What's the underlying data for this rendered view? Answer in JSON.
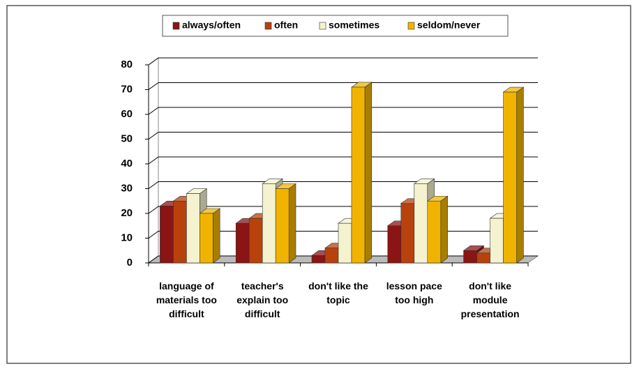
{
  "chart_data": {
    "type": "bar3d",
    "categories": [
      "language of materials too difficult",
      "teacher's explain too difficult",
      "don't like the topic",
      "lesson pace too high",
      "don't like module presentation"
    ],
    "series": [
      {
        "name": "always/often",
        "color": "#8b1414",
        "values": [
          23,
          16,
          3,
          15,
          5
        ]
      },
      {
        "name": "often",
        "color": "#b8420c",
        "values": [
          25,
          18,
          6,
          24,
          4
        ]
      },
      {
        "name": "sometimes",
        "color": "#f4f2cf",
        "values": [
          28,
          32,
          16,
          32,
          18
        ]
      },
      {
        "name": "seldom/never",
        "color": "#f0b400",
        "values": [
          20,
          30,
          71,
          25,
          69
        ]
      }
    ],
    "ylim": [
      0,
      80
    ],
    "yticks": [
      0,
      10,
      20,
      30,
      40,
      50,
      60,
      70,
      80
    ],
    "grid": true,
    "legend": "top"
  }
}
